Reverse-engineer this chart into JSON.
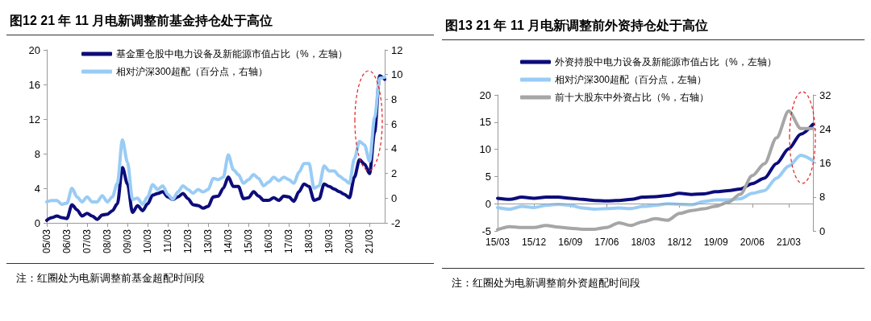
{
  "chart_data": [
    {
      "type": "line",
      "title": "图12 21 年 11 月电新调整前基金持仓处于高位",
      "categories": [
        "05/03",
        null,
        null,
        null,
        "06/03",
        null,
        null,
        null,
        "07/03",
        null,
        null,
        null,
        "08/03",
        null,
        null,
        null,
        "09/03",
        null,
        null,
        null,
        "10/03",
        null,
        null,
        null,
        "11/03",
        null,
        null,
        null,
        "12/03",
        null,
        null,
        null,
        "13/03",
        null,
        null,
        null,
        "14/03",
        null,
        null,
        null,
        "15/03",
        null,
        null,
        null,
        "16/03",
        null,
        null,
        null,
        "17/03",
        null,
        null,
        null,
        "18/03",
        null,
        null,
        null,
        "19/03",
        null,
        null,
        null,
        "20/03",
        null,
        null,
        null,
        "21/03",
        null,
        null,
        null
      ],
      "series": [
        {
          "name": "基金重仓股中电力设备及新能源市值占比（%，左轴）",
          "color": "#0c0c7a",
          "values": [
            0.3,
            0.6,
            0.8,
            0.6,
            0.5,
            2.1,
            1.5,
            0.8,
            1.1,
            0.8,
            0.4,
            0.9,
            1.0,
            1.4,
            2.2,
            6.4,
            4.5,
            1.2,
            2.0,
            1.4,
            2.2,
            3.2,
            3.4,
            3.6,
            3.0,
            2.7,
            3.0,
            3.4,
            2.8,
            2.1,
            2.0,
            1.7,
            1.9,
            3.0,
            3.1,
            4.0,
            5.3,
            4.2,
            4.2,
            2.8,
            2.9,
            3.6,
            3.1,
            2.6,
            2.6,
            2.9,
            2.6,
            3.1,
            3.0,
            2.5,
            3.6,
            4.5,
            4.2,
            2.6,
            2.8,
            4.5,
            4.2,
            3.9,
            3.6,
            3.3,
            2.9,
            5.3,
            7.3,
            6.8,
            5.7,
            10.5,
            17.0,
            16.6
          ]
        },
        {
          "name": "相对沪深300超配（百分点，右轴）",
          "color": "#99ccf5",
          "axis": "y2",
          "values": [
            -0.3,
            -0.2,
            -0.2,
            -0.5,
            -0.4,
            0.8,
            0.1,
            -0.3,
            0.1,
            -0.3,
            -0.3,
            0.2,
            -0.3,
            0.1,
            1.2,
            4.7,
            2.9,
            -0.1,
            0.0,
            -0.5,
            0.1,
            1.1,
            0.7,
            1.0,
            0.3,
            -0.1,
            0.5,
            1.0,
            0.7,
            0.4,
            0.7,
            0.5,
            0.7,
            1.6,
            1.5,
            1.7,
            3.5,
            2.3,
            1.9,
            1.2,
            1.5,
            1.9,
            1.6,
            1.0,
            1.3,
            1.7,
            1.4,
            1.7,
            1.5,
            1.2,
            2.1,
            2.8,
            2.8,
            0.8,
            1.0,
            2.6,
            2.2,
            2.2,
            1.8,
            1.5,
            1.2,
            3.2,
            4.6,
            4.3,
            3.0,
            6.5,
            9.7,
            9.8
          ]
        }
      ],
      "ylim": [
        0,
        20
      ],
      "yticks": [
        0,
        4,
        8,
        12,
        16,
        20
      ],
      "y2lim": [
        -2,
        12
      ],
      "y2ticks": [
        -2,
        0,
        2,
        4,
        6,
        8,
        10,
        12
      ],
      "grid": false,
      "legend": "top left",
      "annotations": [
        "注：红圈处为电新调整前基金超配时间段"
      ]
    },
    {
      "type": "line",
      "title": "图13 21 年 11 月电新调整前外资持仓处于高位",
      "categories": [
        "15/03",
        null,
        null,
        "15/12",
        null,
        null,
        "16/09",
        null,
        null,
        "17/06",
        null,
        null,
        "18/03",
        null,
        null,
        "18/12",
        null,
        null,
        "19/09",
        null,
        null,
        "20/06",
        null,
        null,
        "21/03",
        null,
        null
      ],
      "series": [
        {
          "name": "外资持股中电力设备及新能源市值占比（%，左轴）",
          "color": "#0c0c7a",
          "values": [
            1.0,
            0.8,
            1.2,
            1.0,
            1.2,
            1.2,
            1.0,
            0.8,
            0.6,
            0.5,
            0.6,
            0.8,
            1.2,
            1.3,
            1.5,
            1.9,
            1.7,
            1.8,
            2.2,
            2.4,
            2.7,
            3.7,
            4.7,
            7.4,
            10.1,
            12.8,
            14.6
          ]
        },
        {
          "name": "相对沪深300超配（百分点，左轴）",
          "color": "#99ccf5",
          "values": [
            -0.7,
            -1.0,
            -0.5,
            -0.7,
            -0.3,
            -0.1,
            -0.3,
            -0.8,
            -1.0,
            -0.9,
            -0.8,
            -0.9,
            -0.5,
            -0.3,
            0.0,
            -0.1,
            -0.2,
            0.4,
            0.7,
            0.7,
            0.9,
            1.9,
            2.4,
            4.7,
            6.9,
            8.9,
            7.9
          ]
        },
        {
          "name": "前十大股东中外资占比（%，右轴）",
          "color": "#a6a6a6",
          "axis": "y2",
          "values": [
            0.3,
            1.0,
            0.8,
            0.8,
            1.3,
            0.9,
            0.6,
            0.4,
            0.4,
            0.8,
            1.9,
            1.3,
            2.2,
            2.9,
            2.5,
            4.1,
            4.8,
            5.2,
            5.8,
            6.7,
            8.6,
            13.0,
            15.8,
            21.9,
            28.2,
            24.1,
            24.1
          ]
        }
      ],
      "ylim": [
        -5,
        20
      ],
      "yticks": [
        -5,
        0,
        5,
        10,
        15,
        20
      ],
      "y2lim": [
        0,
        32
      ],
      "y2ticks": [
        0,
        8,
        16,
        24,
        32
      ],
      "ref_lines": [
        {
          "axis": "y",
          "value": 0,
          "color": "#999999"
        }
      ],
      "grid": false,
      "legend": "top left",
      "annotations": [
        "注：红圈处为电新调整前外资超配时间段"
      ]
    }
  ]
}
